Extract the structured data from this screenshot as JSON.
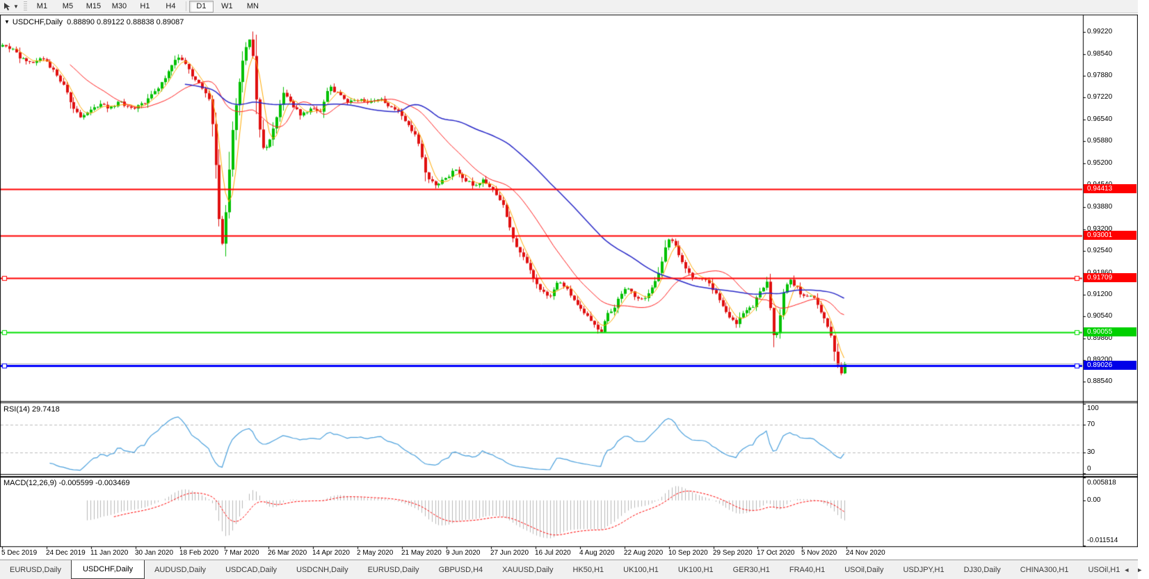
{
  "toolbar": {
    "chart_tool_icon": "cursor-tool-icon",
    "timeframes": [
      {
        "label": "M1",
        "active": false
      },
      {
        "label": "M5",
        "active": false
      },
      {
        "label": "M15",
        "active": false
      },
      {
        "label": "M30",
        "active": false
      },
      {
        "label": "H1",
        "active": false
      },
      {
        "label": "H4",
        "active": false
      },
      {
        "label": "D1",
        "active": true
      },
      {
        "label": "W1",
        "active": false
      },
      {
        "label": "MN",
        "active": false
      }
    ]
  },
  "chart": {
    "title_symbol": "USDCHF,Daily",
    "ohlc": "0.88890 0.89122 0.88838 0.89087",
    "collapse_icon": "▼"
  },
  "price_axis": {
    "ticks": [
      "0.99220",
      "0.98540",
      "0.97880",
      "0.97220",
      "0.96540",
      "0.95880",
      "0.95200",
      "0.94540",
      "0.93880",
      "0.93200",
      "0.92540",
      "0.91860",
      "0.91200",
      "0.90540",
      "0.89860",
      "0.89200",
      "0.88540"
    ]
  },
  "rsi": {
    "label": "RSI(14) 29.7418",
    "axis": [
      "100",
      "70",
      "30",
      "0"
    ],
    "levels": [
      70,
      30
    ]
  },
  "macd": {
    "label": "MACD(12,26,9) -0.005599 -0.003469",
    "axis_max": "0.005818",
    "axis_zero": "0.00",
    "axis_min": "-0.011514"
  },
  "date_axis": [
    "5 Dec 2019",
    "24 Dec 2019",
    "11 Jan 2020",
    "30 Jan 2020",
    "18 Feb 2020",
    "7 Mar 2020",
    "26 Mar 2020",
    "14 Apr 2020",
    "2 May 2020",
    "21 May 2020",
    "9 Jun 2020",
    "27 Jun 2020",
    "16 Jul 2020",
    "4 Aug 2020",
    "22 Aug 2020",
    "10 Sep 2020",
    "29 Sep 2020",
    "17 Oct 2020",
    "5 Nov 2020",
    "24 Nov 2020"
  ],
  "tabs": [
    {
      "label": "EURUSD,Daily",
      "active": false
    },
    {
      "label": "USDCHF,Daily",
      "active": true
    },
    {
      "label": "AUDUSD,Daily",
      "active": false
    },
    {
      "label": "USDCAD,Daily",
      "active": false
    },
    {
      "label": "USDCNH,Daily",
      "active": false
    },
    {
      "label": "EURUSD,Daily",
      "active": false
    },
    {
      "label": "GBPUSD,H4",
      "active": false
    },
    {
      "label": "XAUUSD,Daily",
      "active": false
    },
    {
      "label": "HK50,H1",
      "active": false
    },
    {
      "label": "UK100,H1",
      "active": false
    },
    {
      "label": "UK100,H1",
      "active": false
    },
    {
      "label": "GER30,H1",
      "active": false
    },
    {
      "label": "FRA40,H1",
      "active": false
    },
    {
      "label": "USOil,Daily",
      "active": false
    },
    {
      "label": "USDJPY,H1",
      "active": false
    },
    {
      "label": "DJ30,Daily",
      "active": false
    },
    {
      "label": "CHINA300,H1",
      "active": false
    },
    {
      "label": "USOil,H1",
      "active": false,
      "truncated": true
    }
  ],
  "tab_scroll": {
    "left": "◄",
    "right": "►"
  },
  "colors": {
    "bull": "#00c000",
    "bear": "#e01010",
    "ma_fast": "#ffaa00",
    "ma_mid": "#ff2020",
    "ma_slow": "#2828c8",
    "rsi_line": "#4aa0dd",
    "level_dash": "#bcbcbc",
    "macd_bar": "#b8b8b8",
    "macd_signal": "#ff0000",
    "current_price": "#b0b0b0",
    "tag_red": "#ff0000",
    "tag_green": "#00d000",
    "tag_blue": "#0000e8"
  },
  "chart_data": {
    "type": "candlestick",
    "symbol": "USDCHF",
    "timeframe": "Daily",
    "num_candles": 250,
    "price_top": 0.9973,
    "price_bottom": 0.87946,
    "price_ticks": [
      0.9922,
      0.9854,
      0.9788,
      0.9722,
      0.9654,
      0.9588,
      0.952,
      0.9454,
      0.9388,
      0.932,
      0.9254,
      0.9186,
      0.912,
      0.9054,
      0.8986,
      0.892,
      0.8854
    ],
    "hlines": [
      {
        "price": 0.94413,
        "label": "0.94413",
        "color": "#ff0000",
        "tag": "#ff0000",
        "width": 2,
        "handles": false
      },
      {
        "price": 0.93001,
        "label": "0.93001",
        "color": "#ff0000",
        "tag": "#ff0000",
        "width": 2,
        "handles": false
      },
      {
        "price": 0.91709,
        "label": "0.91709",
        "color": "#ff0000",
        "tag": "#ff0000",
        "width": 2,
        "handles": true
      },
      {
        "price": 0.90055,
        "label": "0.90055",
        "color": "#00e000",
        "tag": "#00d000",
        "width": 2,
        "handles": true
      },
      {
        "price": 0.89026,
        "label": "0.89026",
        "color": "#0000ff",
        "tag": "#0000e8",
        "width": 3,
        "handles": true
      }
    ],
    "current_price": 0.89087,
    "moving_averages": [
      {
        "period": 5,
        "color": "#ffaa00"
      },
      {
        "period": 21,
        "color": "#ff2020"
      },
      {
        "period": 55,
        "color": "#2828c8"
      }
    ],
    "rsi_period": 14,
    "rsi_value": 29.7418,
    "rsi_levels": [
      70,
      30
    ],
    "macd_params": [
      12,
      26,
      9
    ],
    "macd_values": [
      -0.005599,
      -0.003469
    ],
    "macd_range": [
      -0.011514,
      0.005818
    ],
    "price_keyframes": [
      [
        0.0,
        0.9885
      ],
      [
        0.01,
        0.9872
      ],
      [
        0.022,
        0.984
      ],
      [
        0.034,
        0.9825
      ],
      [
        0.046,
        0.9842
      ],
      [
        0.058,
        0.9812
      ],
      [
        0.07,
        0.977
      ],
      [
        0.082,
        0.97
      ],
      [
        0.092,
        0.9665
      ],
      [
        0.103,
        0.968
      ],
      [
        0.115,
        0.9702
      ],
      [
        0.128,
        0.969
      ],
      [
        0.14,
        0.971
      ],
      [
        0.152,
        0.9688
      ],
      [
        0.163,
        0.9695
      ],
      [
        0.175,
        0.9725
      ],
      [
        0.188,
        0.976
      ],
      [
        0.2,
        0.9818
      ],
      [
        0.208,
        0.9845
      ],
      [
        0.216,
        0.9828
      ],
      [
        0.226,
        0.9782
      ],
      [
        0.236,
        0.9758
      ],
      [
        0.245,
        0.9715
      ],
      [
        0.251,
        0.96
      ],
      [
        0.256,
        0.938
      ],
      [
        0.26,
        0.9255
      ],
      [
        0.266,
        0.9395
      ],
      [
        0.272,
        0.96
      ],
      [
        0.28,
        0.975
      ],
      [
        0.287,
        0.9858
      ],
      [
        0.292,
        0.9908
      ],
      [
        0.297,
        0.986
      ],
      [
        0.302,
        0.969
      ],
      [
        0.308,
        0.9565
      ],
      [
        0.316,
        0.958
      ],
      [
        0.325,
        0.9655
      ],
      [
        0.334,
        0.9738
      ],
      [
        0.344,
        0.97
      ],
      [
        0.355,
        0.9665
      ],
      [
        0.366,
        0.9692
      ],
      [
        0.377,
        0.968
      ],
      [
        0.388,
        0.9755
      ],
      [
        0.399,
        0.9732
      ],
      [
        0.41,
        0.9702
      ],
      [
        0.421,
        0.9718
      ],
      [
        0.433,
        0.97
      ],
      [
        0.445,
        0.9722
      ],
      [
        0.457,
        0.97
      ],
      [
        0.468,
        0.9688
      ],
      [
        0.48,
        0.9645
      ],
      [
        0.492,
        0.9598
      ],
      [
        0.503,
        0.9482
      ],
      [
        0.514,
        0.9452
      ],
      [
        0.525,
        0.9472
      ],
      [
        0.537,
        0.9502
      ],
      [
        0.549,
        0.947
      ],
      [
        0.56,
        0.9452
      ],
      [
        0.57,
        0.9472
      ],
      [
        0.581,
        0.9442
      ],
      [
        0.592,
        0.9408
      ],
      [
        0.602,
        0.933
      ],
      [
        0.612,
        0.9252
      ],
      [
        0.622,
        0.9222
      ],
      [
        0.632,
        0.916
      ],
      [
        0.641,
        0.9128
      ],
      [
        0.65,
        0.9108
      ],
      [
        0.658,
        0.9158
      ],
      [
        0.666,
        0.9148
      ],
      [
        0.675,
        0.9118
      ],
      [
        0.684,
        0.9082
      ],
      [
        0.693,
        0.9058
      ],
      [
        0.702,
        0.9028
      ],
      [
        0.711,
        0.9008
      ],
      [
        0.719,
        0.9062
      ],
      [
        0.727,
        0.9082
      ],
      [
        0.735,
        0.9122
      ],
      [
        0.743,
        0.9142
      ],
      [
        0.753,
        0.9102
      ],
      [
        0.763,
        0.9112
      ],
      [
        0.772,
        0.9142
      ],
      [
        0.781,
        0.9202
      ],
      [
        0.79,
        0.9292
      ],
      [
        0.798,
        0.9278
      ],
      [
        0.806,
        0.9222
      ],
      [
        0.815,
        0.9182
      ],
      [
        0.824,
        0.9172
      ],
      [
        0.834,
        0.917
      ],
      [
        0.844,
        0.9132
      ],
      [
        0.854,
        0.9092
      ],
      [
        0.864,
        0.9048
      ],
      [
        0.872,
        0.9032
      ],
      [
        0.881,
        0.9072
      ],
      [
        0.891,
        0.9082
      ],
      [
        0.9,
        0.9132
      ],
      [
        0.908,
        0.9162
      ],
      [
        0.915,
        0.8992
      ],
      [
        0.921,
        0.9002
      ],
      [
        0.928,
        0.9132
      ],
      [
        0.936,
        0.9162
      ],
      [
        0.944,
        0.9142
      ],
      [
        0.951,
        0.9112
      ],
      [
        0.958,
        0.9122
      ],
      [
        0.965,
        0.9102
      ],
      [
        0.972,
        0.9062
      ],
      [
        0.979,
        0.903
      ],
      [
        0.985,
        0.8982
      ],
      [
        0.99,
        0.8922
      ],
      [
        0.995,
        0.8868
      ],
      [
        1.0,
        0.8909
      ]
    ]
  }
}
